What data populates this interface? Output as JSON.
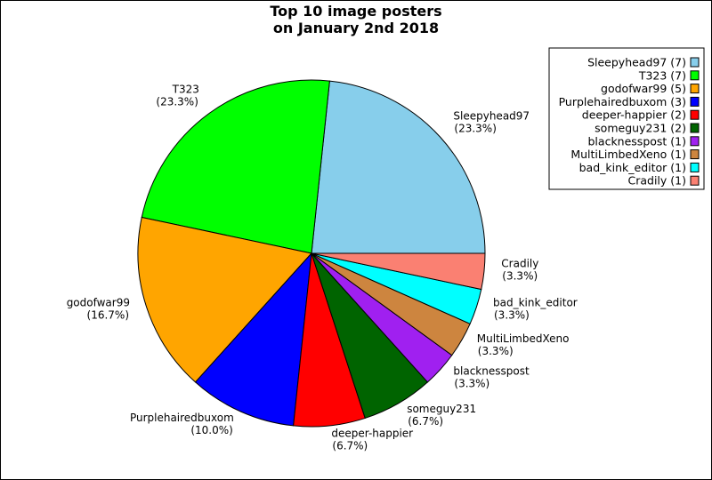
{
  "chart_data": {
    "type": "pie",
    "title_lines": [
      "Top 10 image posters",
      "on January 2nd 2018"
    ],
    "slices": [
      {
        "name": "Sleepyhead97",
        "count": 7,
        "pct": "23.3%",
        "color": "#87CEEB"
      },
      {
        "name": "T323",
        "count": 7,
        "pct": "23.3%",
        "color": "#00FF00"
      },
      {
        "name": "godofwar99",
        "count": 5,
        "pct": "16.7%",
        "color": "#FFA500"
      },
      {
        "name": "Purplehairedbuxom",
        "count": 3,
        "pct": "10.0%",
        "color": "#0000FF"
      },
      {
        "name": "deeper-happier",
        "count": 2,
        "pct": "6.7%",
        "color": "#FF0000"
      },
      {
        "name": "someguy231",
        "count": 2,
        "pct": "6.7%",
        "color": "#006400"
      },
      {
        "name": "blacknesspost",
        "count": 1,
        "pct": "3.3%",
        "color": "#A020F0"
      },
      {
        "name": "MultiLimbedXeno",
        "count": 1,
        "pct": "3.3%",
        "color": "#CD853F"
      },
      {
        "name": "bad_kink_editor",
        "count": 1,
        "pct": "3.3%",
        "color": "#00FFFF"
      },
      {
        "name": "Cradily",
        "count": 1,
        "pct": "3.3%",
        "color": "#FA8072"
      }
    ],
    "legend": [
      "Sleepyhead97 (7)",
      "T323 (7)",
      "godofwar99 (5)",
      "Purplehairedbuxom (3)",
      "deeper-happier (2)",
      "someguy231 (2)",
      "blacknesspost (1)",
      "MultiLimbedXeno (1)",
      "bad_kink_editor (1)",
      "Cradily (1)"
    ],
    "legend_position": "upper-right",
    "start_angle_deg": 0,
    "direction": "counterclockwise"
  }
}
